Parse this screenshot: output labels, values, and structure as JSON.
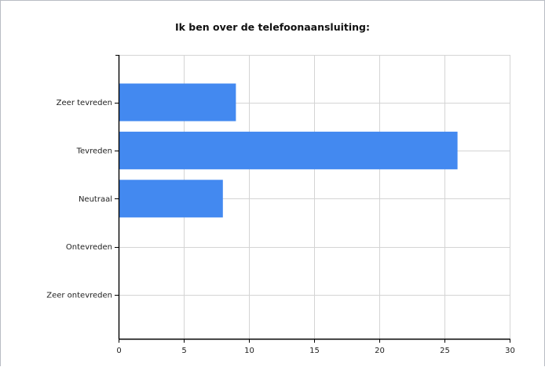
{
  "chart_data": {
    "type": "bar",
    "orientation": "horizontal",
    "title": "Ik ben over de telefoonaansluiting:",
    "categories": [
      "Zeer tevreden",
      "Tevreden",
      "Neutraal",
      "Ontevreden",
      "Zeer ontevreden"
    ],
    "values": [
      9,
      26,
      8,
      0,
      0
    ],
    "xlim": [
      0,
      30
    ],
    "x_ticks": [
      "0",
      "5",
      "10",
      "15",
      "20",
      "25",
      "30"
    ],
    "grid": true,
    "bar_color": "#4389f0"
  }
}
